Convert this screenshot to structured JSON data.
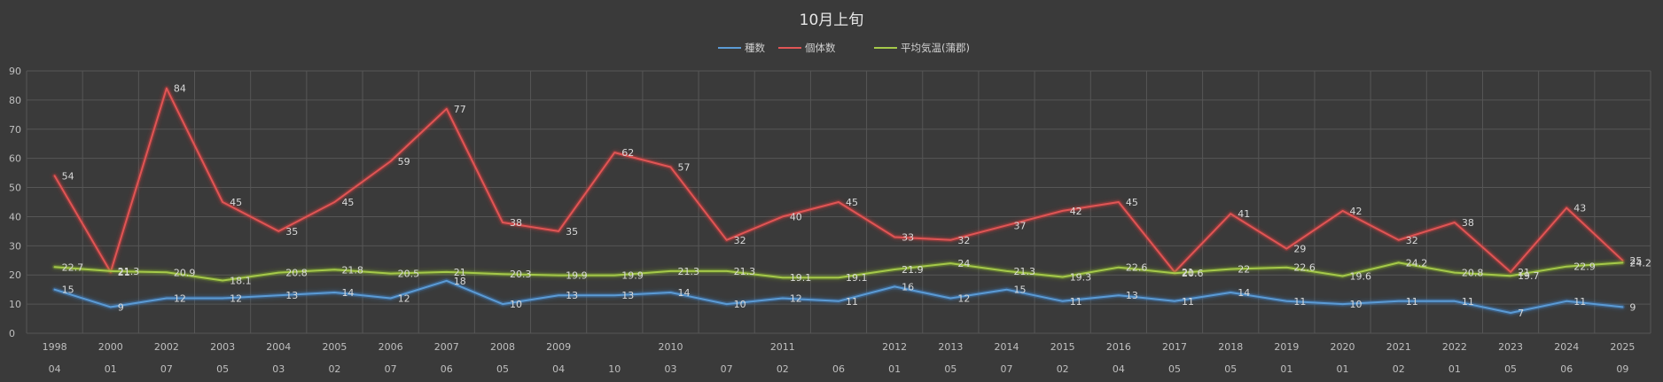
{
  "chart_data": {
    "type": "line",
    "title": "10月上旬",
    "xlabel": "",
    "ylabel": "",
    "ylim": [
      0,
      90
    ],
    "yticks": [
      0,
      10,
      20,
      30,
      40,
      50,
      60,
      70,
      80,
      90
    ],
    "grid": true,
    "legend_position": "top-center",
    "categories": [
      {
        "year": "1998",
        "month": "04"
      },
      {
        "year": "2000",
        "month": "01"
      },
      {
        "year": "2002",
        "month": "07"
      },
      {
        "year": "2003",
        "month": "05"
      },
      {
        "year": "2004",
        "month": "03"
      },
      {
        "year": "2005",
        "month": "02"
      },
      {
        "year": "2006",
        "month": "07"
      },
      {
        "year": "2007",
        "month": "06"
      },
      {
        "year": "2008",
        "month": "05"
      },
      {
        "year": "2009",
        "month": "04"
      },
      {
        "year": "",
        "month": "10"
      },
      {
        "year": "2010",
        "month": "03"
      },
      {
        "year": "",
        "month": "07"
      },
      {
        "year": "2011",
        "month": "02"
      },
      {
        "year": "",
        "month": "06"
      },
      {
        "year": "2012",
        "month": "01"
      },
      {
        "year": "2013",
        "month": "05"
      },
      {
        "year": "2014",
        "month": "07"
      },
      {
        "year": "2015",
        "month": "02"
      },
      {
        "year": "2016",
        "month": "04"
      },
      {
        "year": "2017",
        "month": "05"
      },
      {
        "year": "2018",
        "month": "05"
      },
      {
        "year": "2019",
        "month": "01"
      },
      {
        "year": "2020",
        "month": "01"
      },
      {
        "year": "2021",
        "month": "02"
      },
      {
        "year": "2022",
        "month": "01"
      },
      {
        "year": "2023",
        "month": "05"
      },
      {
        "year": "2024",
        "month": "06"
      },
      {
        "year": "2025",
        "month": "09"
      }
    ],
    "series": [
      {
        "name": "種数",
        "color": "#5b9bd5",
        "glow": "#3f7fc0",
        "values": [
          15,
          9,
          12,
          12,
          13,
          14,
          12,
          18,
          10,
          13,
          13,
          14,
          10,
          12,
          11,
          16,
          12,
          15,
          11,
          13,
          11,
          14,
          11,
          10,
          11,
          11,
          7,
          11,
          9
        ],
        "labels": [
          "15",
          "9",
          "12",
          "12",
          "13",
          "14",
          "12",
          "18",
          "10",
          "13",
          "13",
          "14",
          "10",
          "12",
          "11",
          "16",
          "12",
          "15",
          "11",
          "13",
          "11",
          "14",
          "11",
          "10",
          "11",
          "11",
          "7",
          "11",
          "9"
        ]
      },
      {
        "name": "個体数",
        "color": "#e05555",
        "glow": "#c03a3a",
        "values": [
          54,
          21,
          84,
          45,
          35,
          45,
          59,
          77,
          38,
          35,
          62,
          57,
          32,
          40,
          45,
          33,
          32,
          37,
          42,
          45,
          21,
          41,
          29,
          42,
          32,
          38,
          21,
          43,
          25
        ],
        "labels": [
          "54",
          "21",
          "84",
          "45",
          "35",
          "45",
          "59",
          "77",
          "38",
          "35",
          "62",
          "57",
          "32",
          "40",
          "45",
          "33",
          "32",
          "37",
          "42",
          "45",
          "21",
          "41",
          "29",
          "42",
          "32",
          "38",
          "21",
          "43",
          "25"
        ]
      },
      {
        "name": "平均気温(蒲郡)",
        "color": "#a5c94a",
        "glow": "#7da22d",
        "values": [
          22.7,
          21.3,
          20.9,
          18.1,
          20.8,
          21.8,
          20.5,
          21,
          20.3,
          19.9,
          19.9,
          21.3,
          21.3,
          19.1,
          19.1,
          21.9,
          24,
          21.3,
          19.3,
          22.6,
          20.6,
          22,
          22.6,
          19.6,
          24.2,
          20.8,
          19.7,
          22.9,
          24.2
        ],
        "labels": [
          "22.7",
          "21.3",
          "20.9",
          "18.1",
          "20.8",
          "21.8",
          "20.5",
          "21",
          "20.3",
          "19.9",
          "19.9",
          "21.3",
          "21.3",
          "19.1",
          "19.1",
          "21.9",
          "24",
          "21.3",
          "19.3",
          "22.6",
          "20.6",
          "22",
          "22.6",
          "19.6",
          "24.2",
          "20.8",
          "19.7",
          "22.9",
          "24.2"
        ]
      }
    ]
  }
}
